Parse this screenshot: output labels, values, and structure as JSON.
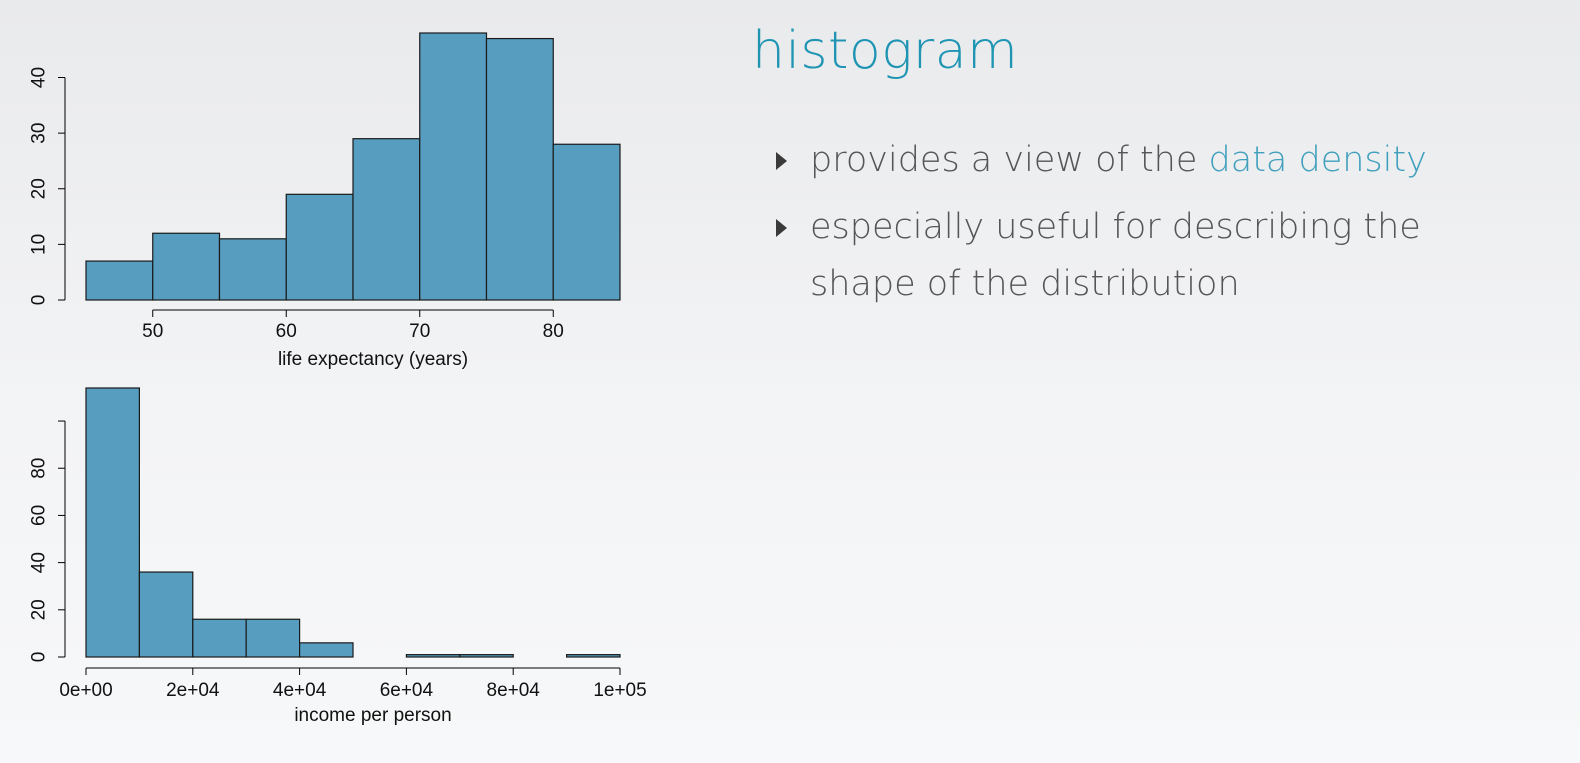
{
  "slide": {
    "title": "histogram",
    "bullets": [
      {
        "before": "provides a view of the ",
        "highlight": "data density",
        "after": ""
      },
      {
        "before": "especially useful for describing the shape of the distribution",
        "highlight": "",
        "after": ""
      }
    ]
  },
  "colors": {
    "title": "#1f95b3",
    "highlight": "#3f9fbd",
    "bar_fill": "#579dbf",
    "bar_stroke": "#1a1a1a",
    "text": "#555555",
    "axis": "#000000"
  },
  "chart_data": [
    {
      "type": "bar",
      "title": "",
      "xlabel": "life expectancy (years)",
      "ylabel": "",
      "bin_edges": [
        45,
        50,
        55,
        60,
        65,
        70,
        75,
        80,
        85
      ],
      "values": [
        7,
        12,
        11,
        19,
        29,
        48,
        47,
        28
      ],
      "xlim": [
        45,
        85
      ],
      "ylim": [
        0,
        48
      ],
      "x_ticks": [
        50,
        60,
        70,
        80
      ],
      "x_tick_labels": [
        "50",
        "60",
        "70",
        "80"
      ],
      "y_ticks": [
        0,
        10,
        20,
        30,
        40
      ],
      "y_tick_labels": [
        "0",
        "10",
        "20",
        "30",
        "40"
      ],
      "grid": false,
      "legend": "none"
    },
    {
      "type": "bar",
      "title": "",
      "xlabel": "income per person",
      "ylabel": "",
      "bin_edges": [
        0,
        10000,
        20000,
        30000,
        40000,
        50000,
        60000,
        70000,
        80000,
        90000,
        100000
      ],
      "values": [
        114,
        36,
        16,
        16,
        6,
        0,
        1,
        1,
        0,
        1
      ],
      "xlim": [
        0,
        100000
      ],
      "ylim": [
        0,
        114
      ],
      "x_ticks": [
        0,
        20000,
        40000,
        60000,
        80000,
        100000
      ],
      "x_tick_labels": [
        "0e+00",
        "2e+04",
        "4e+04",
        "6e+04",
        "8e+04",
        "1e+05"
      ],
      "y_ticks": [
        0,
        20,
        40,
        60,
        80
      ],
      "y_tick_labels": [
        "0",
        "20",
        "40",
        "60",
        "80"
      ],
      "grid": false,
      "legend": "none"
    }
  ]
}
